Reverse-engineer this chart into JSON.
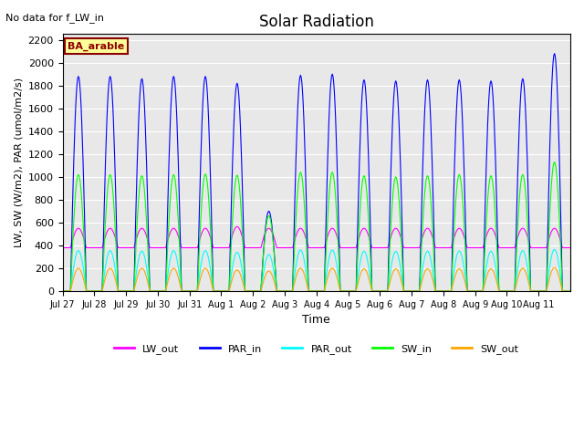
{
  "title": "Solar Radiation",
  "top_left_text": "No data for f_LW_in",
  "legend_box_text": "BA_arable",
  "xlabel": "Time",
  "ylabel": "LW, SW (W/m2), PAR (umol/m2/s)",
  "ylim": [
    0,
    2250
  ],
  "yticks": [
    0,
    200,
    400,
    600,
    800,
    1000,
    1200,
    1400,
    1600,
    1800,
    2000,
    2200
  ],
  "n_days": 16,
  "dt": 0.5,
  "sunrise": 6.0,
  "sunset": 18.0,
  "colors": {
    "LW_out": "#ff00ff",
    "PAR_in": "#0000ff",
    "PAR_out": "#00ffff",
    "SW_in": "#00ff00",
    "SW_out": "#ffa500"
  },
  "par_in_amps": [
    1880,
    1880,
    1860,
    1880,
    1880,
    1820,
    700,
    1890,
    1900,
    1850,
    1840,
    1850,
    1850,
    1840,
    1860,
    2080
  ],
  "sw_in_amps": [
    1020,
    1020,
    1010,
    1020,
    1025,
    1015,
    660,
    1040,
    1040,
    1010,
    1000,
    1010,
    1020,
    1010,
    1020,
    1130
  ],
  "sw_out_amps": [
    200,
    200,
    200,
    200,
    200,
    185,
    175,
    200,
    200,
    195,
    195,
    195,
    195,
    195,
    200,
    205
  ],
  "par_out_amps": [
    355,
    355,
    350,
    355,
    355,
    340,
    320,
    360,
    360,
    350,
    348,
    350,
    352,
    350,
    355,
    365
  ],
  "lw_out_bases": [
    380,
    380,
    380,
    380,
    380,
    380,
    380,
    380,
    380,
    380,
    380,
    380,
    380,
    380,
    380,
    380
  ],
  "lw_out_amps": [
    170,
    170,
    170,
    170,
    170,
    185,
    170,
    170,
    170,
    170,
    170,
    170,
    170,
    170,
    170,
    170
  ],
  "xtick_labels": [
    "Jul 27",
    "Jul 28",
    "Jul 29",
    "Jul 30",
    "Jul 31",
    "Aug 1",
    "Aug 2",
    "Aug 3",
    "Aug 4",
    "Aug 5",
    "Aug 6",
    "Aug 7",
    "Aug 8",
    "Aug 9",
    "Aug 10",
    "Aug 11"
  ],
  "plot_bg_color": "#e8e8e8",
  "grid_color": "#ffffff",
  "legend_box_facecolor": "#ffff99",
  "legend_box_edgecolor": "#8b0000",
  "legend_box_textcolor": "#8b0000"
}
